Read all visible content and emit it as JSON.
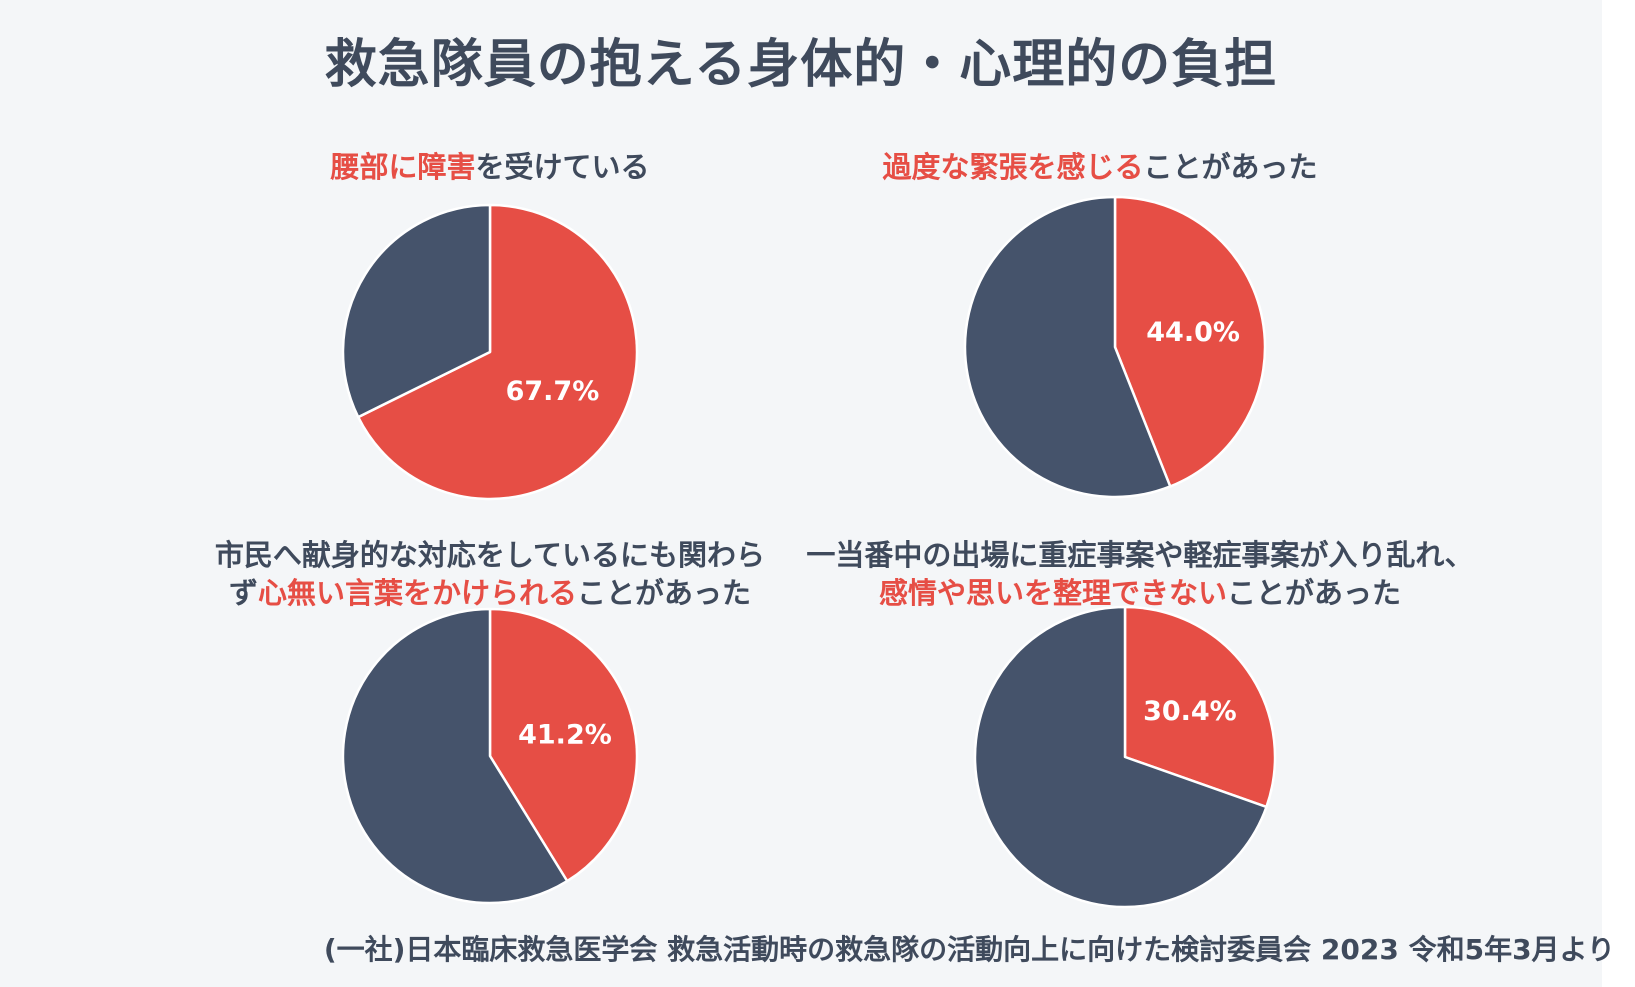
{
  "title": "救急隊員の抱える身体的・心理的の負担",
  "colors": {
    "accent": "#e64e45",
    "dark": "#45536b",
    "background": "#f4f6f8"
  },
  "source": "(一社)日本臨床救急医学会 救急活動時の救急隊の活動向上に向けた検討委員会 2023 令和5年3月より",
  "chart_data": [
    {
      "type": "pie",
      "caption_lines": [
        [
          {
            "text": "腰部に障害",
            "hl": true
          },
          {
            "text": "を受けている",
            "hl": false
          }
        ]
      ],
      "slices": [
        {
          "value": 67.7,
          "color": "#e64e45"
        },
        {
          "value": 32.3,
          "color": "#45536b"
        }
      ],
      "data_label": "67.7%"
    },
    {
      "type": "pie",
      "caption_lines": [
        [
          {
            "text": "過度な緊張を感じる",
            "hl": true
          },
          {
            "text": "ことがあった",
            "hl": false
          }
        ]
      ],
      "slices": [
        {
          "value": 44.0,
          "color": "#e64e45"
        },
        {
          "value": 56.0,
          "color": "#45536b"
        }
      ],
      "data_label": "44.0%"
    },
    {
      "type": "pie",
      "caption_lines": [
        [
          {
            "text": "市民へ献身的な対応をしているにも関わら",
            "hl": false
          }
        ],
        [
          {
            "text": "ず",
            "hl": false
          },
          {
            "text": "心無い言葉をかけられる",
            "hl": true
          },
          {
            "text": "ことがあった",
            "hl": false
          }
        ]
      ],
      "slices": [
        {
          "value": 41.2,
          "color": "#e64e45"
        },
        {
          "value": 58.8,
          "color": "#45536b"
        }
      ],
      "data_label": "41.2%"
    },
    {
      "type": "pie",
      "caption_lines": [
        [
          {
            "text": "一当番中の出場に重症事案や軽症事案が入り乱れ、",
            "hl": false
          }
        ],
        [
          {
            "text": "感情や思いを整理できない",
            "hl": true
          },
          {
            "text": "ことがあった",
            "hl": false
          }
        ]
      ],
      "slices": [
        {
          "value": 30.4,
          "color": "#e64e45"
        },
        {
          "value": 69.6,
          "color": "#45536b"
        }
      ],
      "data_label": "30.4%"
    }
  ]
}
